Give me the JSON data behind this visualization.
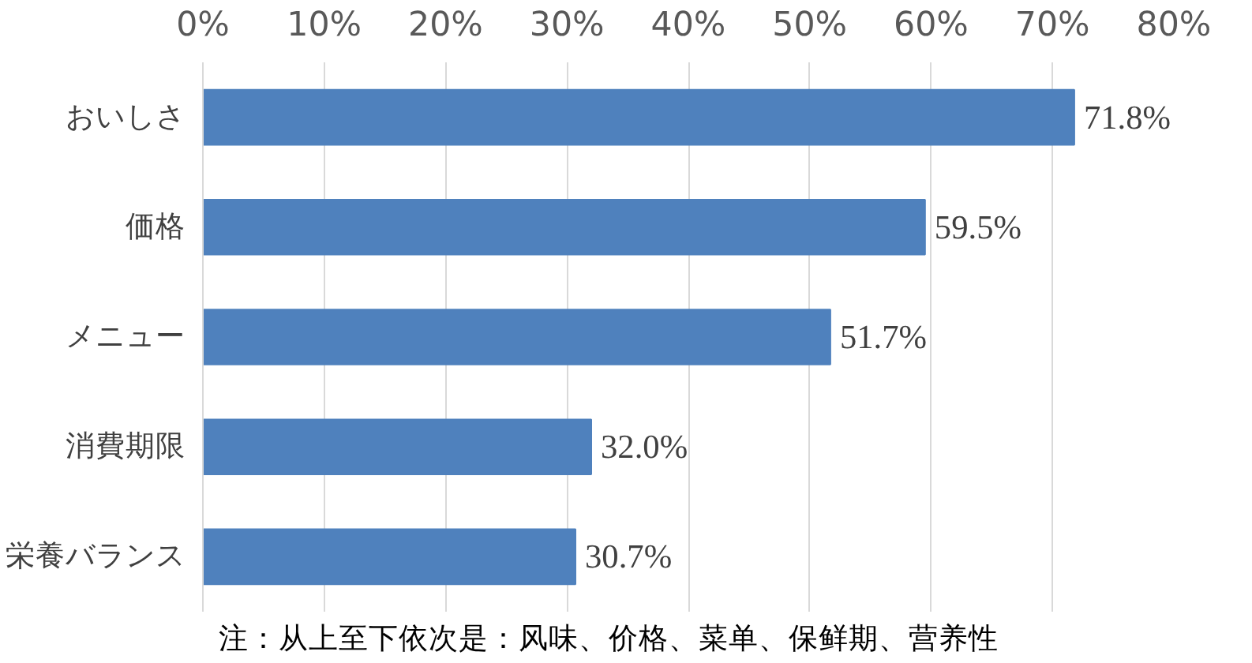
{
  "chart_data": {
    "type": "bar",
    "orientation": "horizontal",
    "categories": [
      "おいしさ",
      "価格",
      "メニュー",
      "消費期限",
      "栄養バランス"
    ],
    "values": [
      71.8,
      59.5,
      51.7,
      32.0,
      30.7
    ],
    "value_labels": [
      "71.8%",
      "59.5%",
      "51.7%",
      "32.0%",
      "30.7%"
    ],
    "color": "#4f81bd",
    "xlim": [
      0,
      80
    ],
    "xticks": [
      {
        "value": 0,
        "label": "0%"
      },
      {
        "value": 10,
        "label": "10%"
      },
      {
        "value": 20,
        "label": "20%"
      },
      {
        "value": 30,
        "label": "30%"
      },
      {
        "value": 40,
        "label": "40%"
      },
      {
        "value": 50,
        "label": "50%"
      },
      {
        "value": 60,
        "label": "60%"
      },
      {
        "value": 70,
        "label": "70%"
      },
      {
        "value": 80,
        "label": "80%"
      }
    ],
    "grid": "x",
    "annotations": [
      "注：从上至下依次是：风味、价格、菜单、保鲜期、营养性"
    ]
  }
}
